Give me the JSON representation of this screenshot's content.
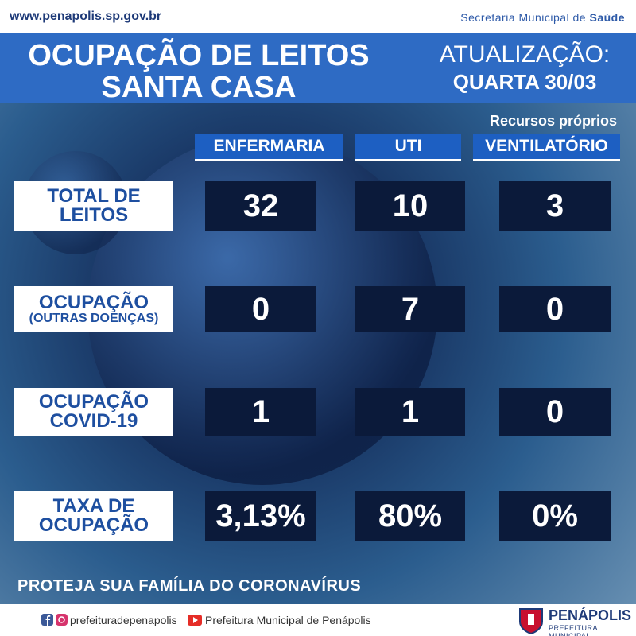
{
  "header": {
    "url": "www.penapolis.sp.gov.br",
    "department": "Secretaria Municipal de",
    "department_highlight": "Saúde"
  },
  "title": {
    "lines": [
      "OCUPAÇÃO DE LEITOS",
      "SANTA CASA"
    ]
  },
  "update": {
    "label": "ATUALIZAÇÃO:",
    "date": "QUARTA 30/03"
  },
  "table": {
    "note": "Recursos próprios",
    "columns": [
      "ENFERMARIA",
      "UTI",
      "VENTILATÓRIO"
    ],
    "rows": [
      {
        "label": [
          "TOTAL DE",
          "LEITOS"
        ],
        "values": [
          32,
          10,
          3
        ]
      },
      {
        "label": [
          "OCUPAÇÃO",
          "(OUTRAS DOENÇAS)"
        ],
        "values": [
          0,
          7,
          0
        ]
      },
      {
        "label": [
          "OCUPAÇÃO",
          "COVID-19"
        ],
        "values": [
          1,
          1,
          0
        ]
      },
      {
        "label": [
          "TAXA DE",
          "OCUPAÇÃO"
        ],
        "values": [
          "3,13%",
          "80%",
          "0%"
        ]
      }
    ]
  },
  "slogan": "PROTEJA SUA FAMÍLIA DO CORONAVÍRUS",
  "footer": {
    "instagram": "prefeituradepenapolis",
    "youtube": "Prefeitura Municipal de Penápolis",
    "logo": {
      "name": "PENÁPOLIS",
      "subtitle": "PREFEITURA MUNICIPAL"
    }
  }
}
